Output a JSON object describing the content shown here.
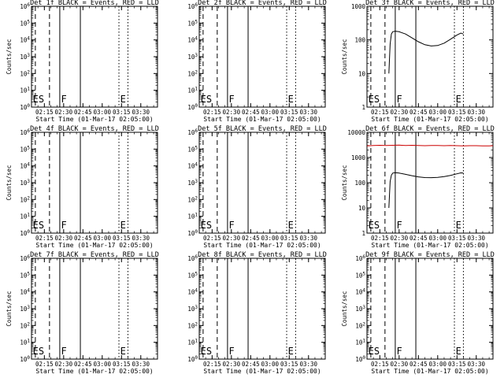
{
  "panel_layout": {
    "columns": 3,
    "rows": 3
  },
  "chart_data": [
    {
      "type": "line",
      "title": "Det 1f BLACK = Events, RED = LLD",
      "xlabel": "Start Time (01-Mar-17 02:05:00)",
      "ylabel": "Counts/sec",
      "x_domain": [
        "02:05",
        "03:43"
      ],
      "ylim": [
        1,
        1000000
      ],
      "log_y": true,
      "ytick_labels": [
        "10^0",
        "10^1",
        "10^2",
        "10^3",
        "10^4",
        "10^5",
        "10^6"
      ],
      "xtick_labels": [
        "02:15",
        "02:30",
        "02:45",
        "03:00",
        "03:15",
        "03:30"
      ],
      "vlines": [
        {
          "x": "02:08",
          "style": "dashed"
        },
        {
          "x": "02:19",
          "style": "dashed"
        },
        {
          "x": "02:27",
          "style": "solid"
        },
        {
          "x": "02:43",
          "style": "solid"
        },
        {
          "x": "03:13",
          "style": "dotted"
        },
        {
          "x": "03:20",
          "style": "dotted"
        }
      ],
      "annotations": [
        {
          "text": "ES",
          "x": "02:06"
        },
        {
          "text": "F",
          "x": "02:28"
        },
        {
          "text": "E",
          "x": "03:14"
        }
      ],
      "series": []
    },
    {
      "type": "line",
      "title": "Det 2f BLACK = Events, RED = LLD",
      "xlabel": "Start Time (01-Mar-17 02:05:00)",
      "ylabel": "",
      "x_domain": [
        "02:05",
        "03:43"
      ],
      "ylim": [
        1,
        1000000
      ],
      "log_y": true,
      "ytick_labels": [
        "10^0",
        "10^1",
        "10^2",
        "10^3",
        "10^4",
        "10^5",
        "10^6"
      ],
      "xtick_labels": [
        "02:15",
        "02:30",
        "02:45",
        "03:00",
        "03:15",
        "03:30"
      ],
      "vlines": [
        {
          "x": "02:08",
          "style": "dashed"
        },
        {
          "x": "02:19",
          "style": "dashed"
        },
        {
          "x": "02:27",
          "style": "solid"
        },
        {
          "x": "02:43",
          "style": "solid"
        },
        {
          "x": "03:13",
          "style": "dotted"
        },
        {
          "x": "03:20",
          "style": "dotted"
        }
      ],
      "annotations": [
        {
          "text": "ES",
          "x": "02:06"
        },
        {
          "text": "F",
          "x": "02:28"
        },
        {
          "text": "E",
          "x": "03:14"
        }
      ],
      "series": []
    },
    {
      "type": "line",
      "title": "Det 3f BLACK = Events, RED = LLD",
      "xlabel": "Start Time (01-Mar-17 02:05:00)",
      "ylabel": "Counts/sec",
      "x_domain": [
        "02:05",
        "03:43"
      ],
      "ylim": [
        1,
        1000
      ],
      "log_y": true,
      "ytick_labels": [
        "1",
        "10",
        "100",
        "1000"
      ],
      "xtick_labels": [
        "02:15",
        "02:30",
        "02:45",
        "03:00",
        "03:15",
        "03:30"
      ],
      "vlines": [
        {
          "x": "02:08",
          "style": "dashed"
        },
        {
          "x": "02:19",
          "style": "dashed"
        },
        {
          "x": "02:27",
          "style": "solid"
        },
        {
          "x": "02:43",
          "style": "solid"
        },
        {
          "x": "03:13",
          "style": "dotted"
        },
        {
          "x": "03:20",
          "style": "dotted"
        }
      ],
      "annotations": [
        {
          "text": "ES",
          "x": "02:06"
        },
        {
          "text": "F",
          "x": "02:28"
        },
        {
          "text": "E",
          "x": "03:14"
        }
      ],
      "series": [
        {
          "color": "#000000",
          "x": [
            "02:22",
            "02:23",
            "02:24",
            "02:25",
            "02:27",
            "02:30",
            "02:35",
            "02:40",
            "02:45",
            "02:50",
            "02:55",
            "03:00",
            "03:05",
            "03:10",
            "03:15",
            "03:18",
            "03:20"
          ],
          "values": [
            10,
            75,
            150,
            175,
            182,
            175,
            150,
            115,
            88,
            72,
            66,
            68,
            80,
            105,
            140,
            160,
            150
          ]
        }
      ]
    },
    {
      "type": "line",
      "title": "Det 4f BLACK = Events, RED = LLD",
      "xlabel": "Start Time (01-Mar-17 02:05:00)",
      "ylabel": "Counts/sec",
      "x_domain": [
        "02:05",
        "03:43"
      ],
      "ylim": [
        1,
        1000000
      ],
      "log_y": true,
      "ytick_labels": [
        "10^0",
        "10^1",
        "10^2",
        "10^3",
        "10^4",
        "10^5",
        "10^6"
      ],
      "xtick_labels": [
        "02:15",
        "02:30",
        "02:45",
        "03:00",
        "03:15",
        "03:30"
      ],
      "vlines": [
        {
          "x": "02:08",
          "style": "dashed"
        },
        {
          "x": "02:19",
          "style": "dashed"
        },
        {
          "x": "02:27",
          "style": "solid"
        },
        {
          "x": "02:43",
          "style": "solid"
        },
        {
          "x": "03:13",
          "style": "dotted"
        },
        {
          "x": "03:20",
          "style": "dotted"
        }
      ],
      "annotations": [
        {
          "text": "ES",
          "x": "02:06"
        },
        {
          "text": "F",
          "x": "02:28"
        },
        {
          "text": "E",
          "x": "03:14"
        }
      ],
      "series": []
    },
    {
      "type": "line",
      "title": "Det 5f BLACK = Events, RED = LLD",
      "xlabel": "Start Time (01-Mar-17 02:05:00)",
      "ylabel": "",
      "x_domain": [
        "02:05",
        "03:43"
      ],
      "ylim": [
        1,
        1000000
      ],
      "log_y": true,
      "ytick_labels": [
        "10^0",
        "10^1",
        "10^2",
        "10^3",
        "10^4",
        "10^5",
        "10^6"
      ],
      "xtick_labels": [
        "02:15",
        "02:30",
        "02:45",
        "03:00",
        "03:15",
        "03:30"
      ],
      "vlines": [
        {
          "x": "02:08",
          "style": "dashed"
        },
        {
          "x": "02:19",
          "style": "dashed"
        },
        {
          "x": "02:27",
          "style": "solid"
        },
        {
          "x": "02:43",
          "style": "solid"
        },
        {
          "x": "03:13",
          "style": "dotted"
        },
        {
          "x": "03:20",
          "style": "dotted"
        }
      ],
      "annotations": [
        {
          "text": "ES",
          "x": "02:06"
        },
        {
          "text": "F",
          "x": "02:28"
        },
        {
          "text": "E",
          "x": "03:14"
        }
      ],
      "series": []
    },
    {
      "type": "line",
      "title": "Det 6f BLACK = Events, RED = LLD",
      "xlabel": "Start Time (01-Mar-17 02:05:00)",
      "ylabel": "Counts/sec",
      "x_domain": [
        "02:05",
        "03:43"
      ],
      "ylim": [
        1,
        10000
      ],
      "log_y": true,
      "ytick_labels": [
        "1",
        "10",
        "100",
        "1000",
        "10000"
      ],
      "xtick_labels": [
        "02:15",
        "02:30",
        "02:45",
        "03:00",
        "03:15",
        "03:30"
      ],
      "vlines": [
        {
          "x": "02:08",
          "style": "dashed"
        },
        {
          "x": "02:19",
          "style": "dashed"
        },
        {
          "x": "02:27",
          "style": "solid"
        },
        {
          "x": "02:43",
          "style": "solid"
        },
        {
          "x": "03:13",
          "style": "dotted"
        },
        {
          "x": "03:20",
          "style": "dotted"
        }
      ],
      "annotations": [
        {
          "text": "ES",
          "x": "02:06"
        },
        {
          "text": "F",
          "x": "02:28"
        },
        {
          "text": "E",
          "x": "03:14"
        }
      ],
      "series": [
        {
          "color": "#000000",
          "x": [
            "02:22",
            "02:23",
            "02:24",
            "02:25",
            "02:27",
            "02:30",
            "02:35",
            "02:40",
            "02:45",
            "02:50",
            "02:55",
            "03:00",
            "03:05",
            "03:10",
            "03:15",
            "03:18",
            "03:20"
          ],
          "values": [
            10,
            110,
            200,
            240,
            250,
            240,
            215,
            190,
            170,
            160,
            158,
            162,
            175,
            195,
            225,
            245,
            240
          ]
        },
        {
          "color": "#cc0000",
          "x": [
            "02:05",
            "02:10",
            "02:15",
            "02:20",
            "02:25",
            "02:30",
            "02:35",
            "02:40",
            "02:45",
            "02:50",
            "02:55",
            "03:00",
            "03:05",
            "03:10",
            "03:15",
            "03:20",
            "03:25",
            "03:30",
            "03:35",
            "03:40",
            "03:43"
          ],
          "values": [
            2900,
            3000,
            3050,
            3000,
            3050,
            3100,
            3000,
            3050,
            3000,
            2950,
            3000,
            3000,
            2950,
            3000,
            2950,
            2900,
            2950,
            2950,
            2900,
            2900,
            2950
          ]
        }
      ]
    },
    {
      "type": "line",
      "title": "Det 7f BLACK = Events, RED = LLD",
      "xlabel": "Start Time (01-Mar-17 02:05:00)",
      "ylabel": "Counts/sec",
      "x_domain": [
        "02:05",
        "03:43"
      ],
      "ylim": [
        1,
        1000000
      ],
      "log_y": true,
      "ytick_labels": [
        "10^0",
        "10^1",
        "10^2",
        "10^3",
        "10^4",
        "10^5",
        "10^6"
      ],
      "xtick_labels": [
        "02:15",
        "02:30",
        "02:45",
        "03:00",
        "03:15",
        "03:30"
      ],
      "vlines": [
        {
          "x": "02:08",
          "style": "dashed"
        },
        {
          "x": "02:19",
          "style": "dashed"
        },
        {
          "x": "02:27",
          "style": "solid"
        },
        {
          "x": "02:43",
          "style": "solid"
        },
        {
          "x": "03:13",
          "style": "dotted"
        },
        {
          "x": "03:20",
          "style": "dotted"
        }
      ],
      "annotations": [
        {
          "text": "ES",
          "x": "02:06"
        },
        {
          "text": "F",
          "x": "02:28"
        },
        {
          "text": "E",
          "x": "03:14"
        }
      ],
      "series": []
    },
    {
      "type": "line",
      "title": "Det 8f BLACK = Events, RED = LLD",
      "xlabel": "Start Time (01-Mar-17 02:05:00)",
      "ylabel": "",
      "x_domain": [
        "02:05",
        "03:43"
      ],
      "ylim": [
        1,
        1000000
      ],
      "log_y": true,
      "ytick_labels": [
        "10^0",
        "10^1",
        "10^2",
        "10^3",
        "10^4",
        "10^5",
        "10^6"
      ],
      "xtick_labels": [
        "02:15",
        "02:30",
        "02:45",
        "03:00",
        "03:15",
        "03:30"
      ],
      "vlines": [
        {
          "x": "02:08",
          "style": "dashed"
        },
        {
          "x": "02:19",
          "style": "dashed"
        },
        {
          "x": "02:27",
          "style": "solid"
        },
        {
          "x": "02:43",
          "style": "solid"
        },
        {
          "x": "03:13",
          "style": "dotted"
        },
        {
          "x": "03:20",
          "style": "dotted"
        }
      ],
      "annotations": [
        {
          "text": "ES",
          "x": "02:06"
        },
        {
          "text": "F",
          "x": "02:28"
        },
        {
          "text": "E",
          "x": "03:14"
        }
      ],
      "series": []
    },
    {
      "type": "line",
      "title": "Det 9f BLACK = Events, RED = LLD",
      "xlabel": "Start Time (01-Mar-17 02:05:00)",
      "ylabel": "Counts/sec",
      "x_domain": [
        "02:05",
        "03:43"
      ],
      "ylim": [
        1,
        1000000
      ],
      "log_y": true,
      "ytick_labels": [
        "10^0",
        "10^1",
        "10^2",
        "10^3",
        "10^4",
        "10^5",
        "10^6"
      ],
      "xtick_labels": [
        "02:15",
        "02:30",
        "02:45",
        "03:00",
        "03:15",
        "03:30"
      ],
      "vlines": [
        {
          "x": "02:08",
          "style": "dashed"
        },
        {
          "x": "02:19",
          "style": "dashed"
        },
        {
          "x": "02:27",
          "style": "solid"
        },
        {
          "x": "02:43",
          "style": "solid"
        },
        {
          "x": "03:13",
          "style": "dotted"
        },
        {
          "x": "03:20",
          "style": "dotted"
        }
      ],
      "annotations": [
        {
          "text": "ES",
          "x": "02:06"
        },
        {
          "text": "F",
          "x": "02:28"
        },
        {
          "text": "E",
          "x": "03:14"
        }
      ],
      "series": []
    }
  ]
}
